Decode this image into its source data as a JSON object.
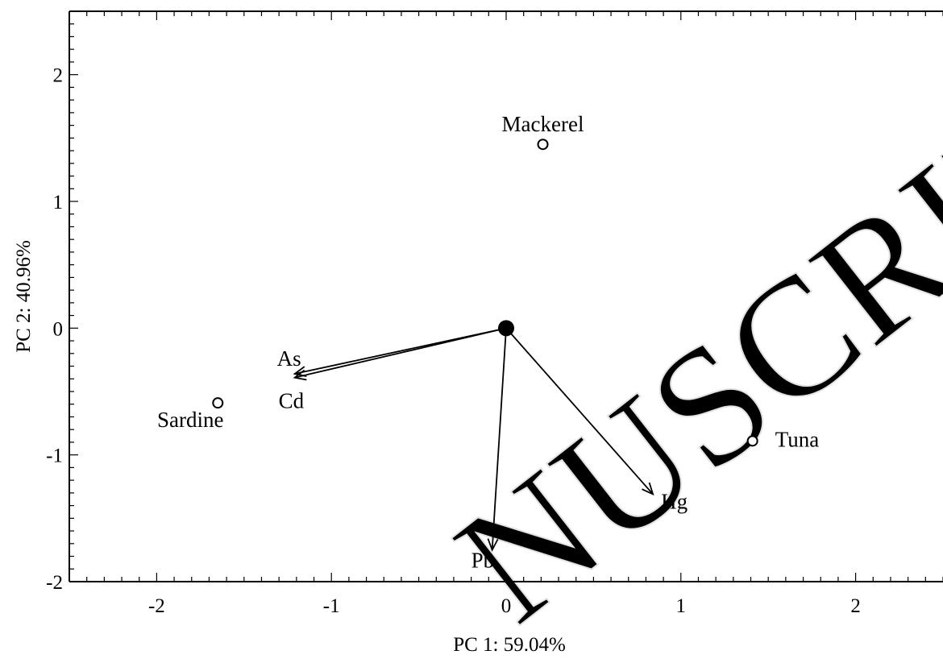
{
  "chart_data": {
    "type": "scatter",
    "title": "",
    "xlabel": "PC 1: 59.04%",
    "ylabel": "PC 2: 40.96%",
    "xlim": [
      -2.5,
      2.5
    ],
    "ylim": [
      -2.0,
      2.5
    ],
    "xticks": [
      -2,
      -1,
      0,
      1,
      2
    ],
    "yticks": [
      -2,
      -1,
      0,
      1,
      2
    ],
    "xtick_labels": [
      "-2",
      "-1",
      "0",
      "1",
      "2"
    ],
    "ytick_labels": [
      "-2",
      "-1",
      "0",
      "1",
      "2"
    ],
    "points": [
      {
        "label": "Mackerel",
        "x": 0.21,
        "y": 1.45
      },
      {
        "label": "Sardine",
        "x": -1.65,
        "y": -0.59
      },
      {
        "label": "Tuna",
        "x": 1.41,
        "y": -0.89
      }
    ],
    "origin": {
      "x": 0,
      "y": 0
    },
    "vectors": [
      {
        "label": "As",
        "x": -1.21,
        "y": -0.36
      },
      {
        "label": "Cd",
        "x": -1.21,
        "y": -0.39
      },
      {
        "label": "Hg",
        "x": 0.84,
        "y": -1.31
      },
      {
        "label": "Pb",
        "x": -0.08,
        "y": -1.75
      }
    ],
    "grid": false,
    "legend": "none"
  }
}
